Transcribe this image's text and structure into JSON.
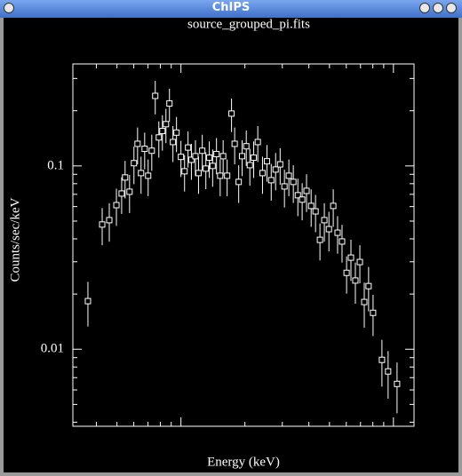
{
  "window": {
    "title": "ChIPS"
  },
  "chart_data": {
    "type": "scatter",
    "title": "source_grouped_pi.fits",
    "xlabel": "Energy (keV)",
    "ylabel": "Counts/sec/keV",
    "xscale": "log",
    "yscale": "log",
    "xlim": [
      0.31,
      12.5
    ],
    "ylim": [
      0.0038,
      0.36
    ],
    "yticks": [
      0.01,
      0.1
    ],
    "color": "#ffffff",
    "x": [
      0.365,
      0.426,
      0.46,
      0.497,
      0.526,
      0.546,
      0.573,
      0.601,
      0.625,
      0.649,
      0.675,
      0.701,
      0.729,
      0.757,
      0.787,
      0.818,
      0.85,
      0.883,
      0.917,
      0.953,
      1.0,
      1.04,
      1.08,
      1.12,
      1.17,
      1.21,
      1.26,
      1.31,
      1.36,
      1.41,
      1.47,
      1.53,
      1.58,
      1.65,
      1.73,
      1.79,
      1.87,
      1.94,
      2.03,
      2.11,
      2.2,
      2.3,
      2.42,
      2.54,
      2.66,
      2.79,
      2.93,
      3.07,
      3.22,
      3.38,
      3.55,
      3.72,
      3.9,
      4.1,
      4.3,
      4.51,
      4.73,
      4.97,
      5.21,
      5.46,
      5.73,
      6.02,
      6.31,
      6.62,
      6.95,
      7.29,
      7.64,
      8.02,
      8.83,
      9.44,
      10.4
    ],
    "values": [
      0.0183,
      0.0479,
      0.0506,
      0.0611,
      0.0707,
      0.0865,
      0.0723,
      0.1035,
      0.132,
      0.0914,
      0.124,
      0.0884,
      0.121,
      0.241,
      0.143,
      0.155,
      0.169,
      0.219,
      0.135,
      0.152,
      0.112,
      0.0935,
      0.126,
      0.108,
      0.113,
      0.0914,
      0.121,
      0.0967,
      0.111,
      0.1,
      0.116,
      0.0884,
      0.113,
      0.0884,
      0.193,
      0.132,
      0.0818,
      0.113,
      0.128,
      0.101,
      0.111,
      0.135,
      0.0914,
      0.106,
      0.0836,
      0.0956,
      0.102,
      0.0773,
      0.0884,
      0.0818,
      0.0692,
      0.0655,
      0.0731,
      0.0605,
      0.0565,
      0.0395,
      0.0506,
      0.0452,
      0.0605,
      0.0432,
      0.0387,
      0.0261,
      0.0316,
      0.0237,
      0.0299,
      0.0181,
      0.0221,
      0.0158,
      0.00875,
      0.00757,
      0.00647
    ],
    "errors": [
      0.005,
      0.011,
      0.012,
      0.014,
      0.016,
      0.02,
      0.017,
      0.024,
      0.03,
      0.021,
      0.028,
      0.02,
      0.027,
      0.05,
      0.032,
      0.034,
      0.036,
      0.045,
      0.03,
      0.033,
      0.025,
      0.021,
      0.028,
      0.024,
      0.025,
      0.021,
      0.027,
      0.022,
      0.025,
      0.023,
      0.026,
      0.02,
      0.025,
      0.02,
      0.04,
      0.03,
      0.019,
      0.025,
      0.028,
      0.023,
      0.025,
      0.03,
      0.021,
      0.024,
      0.019,
      0.022,
      0.023,
      0.018,
      0.02,
      0.019,
      0.016,
      0.015,
      0.017,
      0.014,
      0.013,
      0.009,
      0.012,
      0.011,
      0.014,
      0.01,
      0.009,
      0.006,
      0.008,
      0.006,
      0.007,
      0.005,
      0.006,
      0.004,
      0.0025,
      0.0022,
      0.002
    ]
  }
}
